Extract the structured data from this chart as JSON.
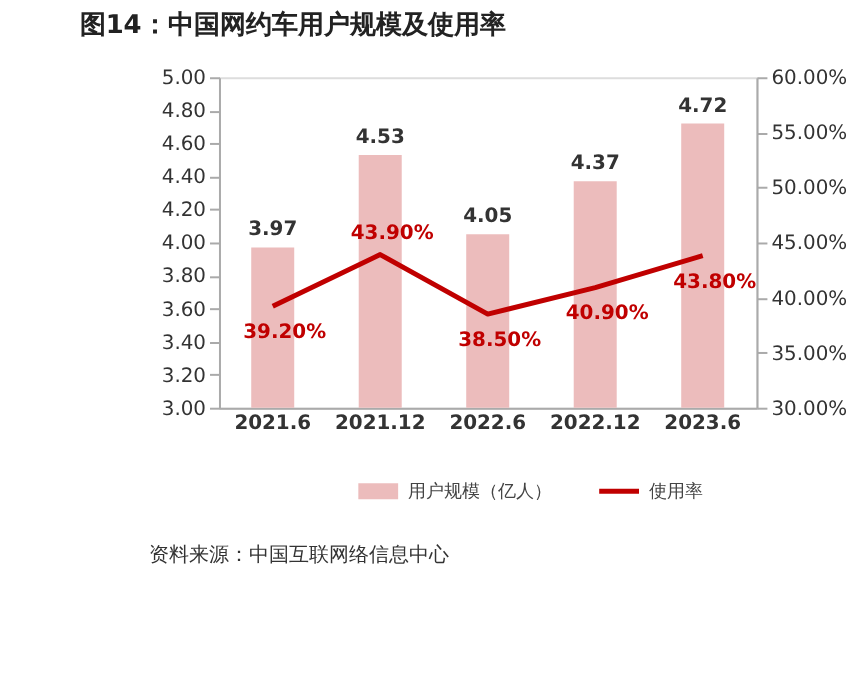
{
  "chart_data": {
    "type": "bar",
    "title": "图14：中国网约车用户规模及使用率",
    "annotations": [
      "资料来源：中国互联网络信息中心"
    ],
    "categories": [
      "2021.6",
      "2021.12",
      "2022.6",
      "2022.12",
      "2023.6"
    ],
    "series": [
      {
        "name": "用户规模（亿人）",
        "color": "#ecbcbc",
        "values": [
          3.97,
          4.53,
          4.05,
          4.37,
          4.72
        ],
        "value_labels": [
          "3.97",
          "4.53",
          "4.05",
          "4.37",
          "4.72"
        ]
      },
      {
        "name": "使用率",
        "type": "line",
        "axis": "y2",
        "color": "#c00000",
        "values": [
          39.2,
          43.9,
          38.5,
          40.9,
          43.8
        ],
        "value_labels": [
          "39.20%",
          "43.90%",
          "38.50%",
          "40.90%",
          "43.80%"
        ]
      }
    ],
    "ylim": [
      3.0,
      5.0
    ],
    "yticks": [
      {
        "value": 3.0,
        "label": "3.00"
      },
      {
        "value": 3.2,
        "label": "3.20"
      },
      {
        "value": 3.4,
        "label": "3.40"
      },
      {
        "value": 3.6,
        "label": "3.60"
      },
      {
        "value": 3.8,
        "label": "3.80"
      },
      {
        "value": 4.0,
        "label": "4.00"
      },
      {
        "value": 4.2,
        "label": "4.20"
      },
      {
        "value": 4.4,
        "label": "4.40"
      },
      {
        "value": 4.6,
        "label": "4.60"
      },
      {
        "value": 4.8,
        "label": "4.80"
      },
      {
        "value": 5.0,
        "label": "5.00"
      }
    ],
    "y2lim": [
      30,
      60
    ],
    "y2ticks": [
      {
        "value": 30,
        "label": "30.00%"
      },
      {
        "value": 35,
        "label": "35.00%"
      },
      {
        "value": 40,
        "label": "40.00%"
      },
      {
        "value": 45,
        "label": "45.00%"
      },
      {
        "value": 50,
        "label": "50.00%"
      },
      {
        "value": 55,
        "label": "55.00%"
      },
      {
        "value": 60,
        "label": "60.00%"
      }
    ],
    "legend": "bottom",
    "grid": false
  }
}
